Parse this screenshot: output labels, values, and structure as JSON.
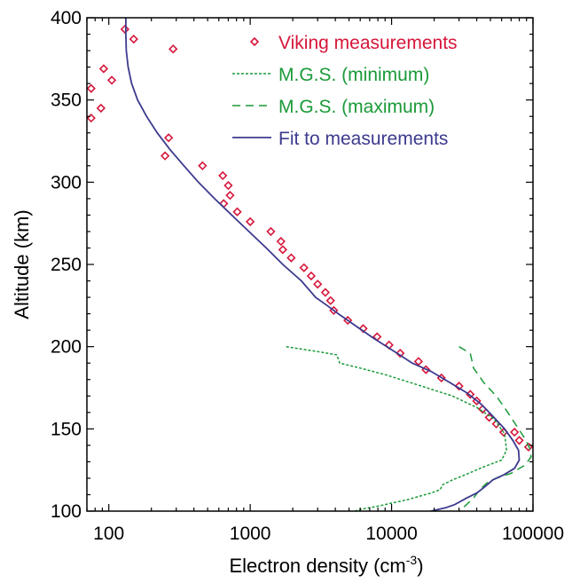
{
  "chart_data": {
    "type": "scatter+line",
    "xlabel": "Electron density (cm",
    "xlabel_sup": "-3",
    "xlabel_close": ")",
    "ylabel": "Altitude (km)",
    "xscale": "log",
    "xlim": [
      70,
      100000
    ],
    "ylim": [
      100,
      400
    ],
    "xticks": [
      {
        "value": 100,
        "label": "100"
      },
      {
        "value": 1000,
        "label": "1000"
      },
      {
        "value": 10000,
        "label": "10000"
      },
      {
        "value": 100000,
        "label": "100000"
      }
    ],
    "yticks": [
      {
        "value": 100,
        "label": "100"
      },
      {
        "value": 150,
        "label": "150"
      },
      {
        "value": 200,
        "label": "200"
      },
      {
        "value": 250,
        "label": "250"
      },
      {
        "value": 300,
        "label": "300"
      },
      {
        "value": 350,
        "label": "350"
      },
      {
        "value": 400,
        "label": "400"
      }
    ],
    "legend_position": "top-right",
    "series": [
      {
        "name": "Viking measurements",
        "kind": "scatter",
        "marker": "diamond",
        "color": "#d6163a",
        "points": [
          [
            130,
            393
          ],
          [
            150,
            387
          ],
          [
            285,
            381
          ],
          [
            92,
            369
          ],
          [
            75,
            357
          ],
          [
            105,
            362
          ],
          [
            88,
            345
          ],
          [
            75,
            339
          ],
          [
            265,
            327
          ],
          [
            250,
            316
          ],
          [
            460,
            310
          ],
          [
            640,
            304
          ],
          [
            700,
            298
          ],
          [
            720,
            292
          ],
          [
            650,
            287
          ],
          [
            810,
            282
          ],
          [
            1000,
            276
          ],
          [
            1400,
            270
          ],
          [
            1650,
            264
          ],
          [
            1700,
            259
          ],
          [
            1950,
            254
          ],
          [
            2400,
            248
          ],
          [
            2700,
            243
          ],
          [
            3000,
            238
          ],
          [
            3400,
            233
          ],
          [
            3700,
            228
          ],
          [
            3900,
            222
          ],
          [
            4900,
            216
          ],
          [
            6300,
            211
          ],
          [
            7900,
            206
          ],
          [
            9600,
            201
          ],
          [
            11500,
            196
          ],
          [
            15500,
            191
          ],
          [
            17500,
            186
          ],
          [
            22500,
            181
          ],
          [
            30000,
            176
          ],
          [
            36000,
            171
          ],
          [
            40000,
            167
          ],
          [
            44000,
            162
          ],
          [
            49000,
            157
          ],
          [
            55000,
            153
          ],
          [
            62000,
            148
          ],
          [
            74000,
            148
          ],
          [
            80000,
            143
          ],
          [
            93000,
            139
          ]
        ]
      },
      {
        "name": "M.G.S. (minimum)",
        "kind": "line",
        "dash": "3,2",
        "color": "#1a9a38",
        "points": [
          [
            1800,
            200
          ],
          [
            3000,
            197
          ],
          [
            4100,
            195
          ],
          [
            4300,
            190
          ],
          [
            6000,
            187
          ],
          [
            9000,
            183
          ],
          [
            15000,
            177
          ],
          [
            27000,
            170
          ],
          [
            40000,
            163
          ],
          [
            53000,
            156
          ],
          [
            63000,
            147
          ],
          [
            65000,
            137
          ],
          [
            60000,
            131
          ],
          [
            45000,
            127
          ],
          [
            33000,
            122
          ],
          [
            27000,
            119
          ],
          [
            23000,
            116
          ],
          [
            22000,
            113
          ],
          [
            19000,
            111
          ],
          [
            13000,
            107
          ],
          [
            8000,
            103
          ],
          [
            6000,
            101
          ],
          [
            5500,
            100
          ]
        ]
      },
      {
        "name": "M.G.S. (maximum)",
        "kind": "line",
        "dash": "9,6",
        "color": "#1a9a38",
        "points": [
          [
            30000,
            200
          ],
          [
            36000,
            196
          ],
          [
            38000,
            187
          ],
          [
            45000,
            178
          ],
          [
            55000,
            170
          ],
          [
            64000,
            162
          ],
          [
            75000,
            153
          ],
          [
            88000,
            144
          ],
          [
            95000,
            138
          ],
          [
            97000,
            133
          ],
          [
            88000,
            128
          ],
          [
            70000,
            123
          ],
          [
            55000,
            120
          ],
          [
            47000,
            117
          ],
          [
            42000,
            113
          ],
          [
            38000,
            108
          ],
          [
            33000,
            103
          ],
          [
            30000,
            100
          ]
        ]
      },
      {
        "name": "Fit to measurements",
        "kind": "line",
        "dash": "",
        "color": "#3c3a8e",
        "points": [
          [
            132,
            400
          ],
          [
            132,
            390
          ],
          [
            133,
            380
          ],
          [
            137,
            370
          ],
          [
            145,
            360
          ],
          [
            160,
            350
          ],
          [
            185,
            340
          ],
          [
            220,
            330
          ],
          [
            270,
            320
          ],
          [
            340,
            310
          ],
          [
            430,
            300
          ],
          [
            560,
            290
          ],
          [
            740,
            280
          ],
          [
            980,
            270
          ],
          [
            1300,
            260
          ],
          [
            1700,
            250
          ],
          [
            2300,
            240
          ],
          [
            2900,
            230
          ],
          [
            3500,
            225
          ],
          [
            4200,
            220
          ],
          [
            5500,
            213
          ],
          [
            7500,
            205
          ],
          [
            10500,
            197
          ],
          [
            14000,
            190
          ],
          [
            19000,
            185
          ],
          [
            26000,
            178
          ],
          [
            34000,
            172
          ],
          [
            43000,
            165
          ],
          [
            53000,
            157
          ],
          [
            63000,
            150
          ],
          [
            72000,
            143
          ],
          [
            79000,
            137
          ],
          [
            80000,
            131
          ],
          [
            74000,
            126
          ],
          [
            62000,
            122
          ],
          [
            52000,
            119
          ],
          [
            46000,
            115
          ],
          [
            40000,
            111
          ],
          [
            34000,
            108
          ],
          [
            28000,
            104
          ],
          [
            24000,
            102
          ],
          [
            19000,
            100
          ]
        ]
      }
    ]
  }
}
